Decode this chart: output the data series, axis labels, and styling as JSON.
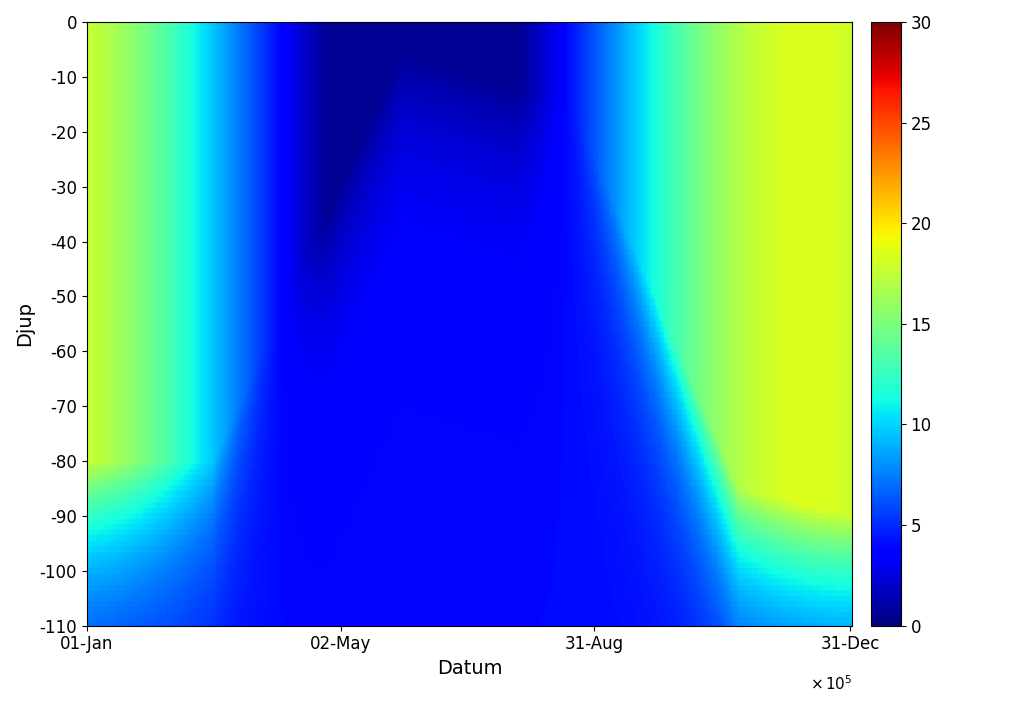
{
  "title": "",
  "xlabel": "Datum",
  "ylabel": "Djup",
  "xlim": [
    0,
    365
  ],
  "ylim": [
    -110,
    0
  ],
  "yticks": [
    0,
    -10,
    -20,
    -30,
    -40,
    -50,
    -60,
    -70,
    -80,
    -90,
    -100,
    -110
  ],
  "xtick_labels": [
    "01-Jan",
    "02-May",
    "31-Aug",
    "31-Dec"
  ],
  "xtick_positions": [
    0,
    121,
    242,
    364
  ],
  "clim": [
    0,
    30
  ],
  "cticks": [
    0,
    5,
    10,
    15,
    20,
    25,
    30
  ],
  "colormap": "jet",
  "background_color": "#ffffff",
  "n_days": 365,
  "n_depths": 111,
  "max_depth": 110
}
